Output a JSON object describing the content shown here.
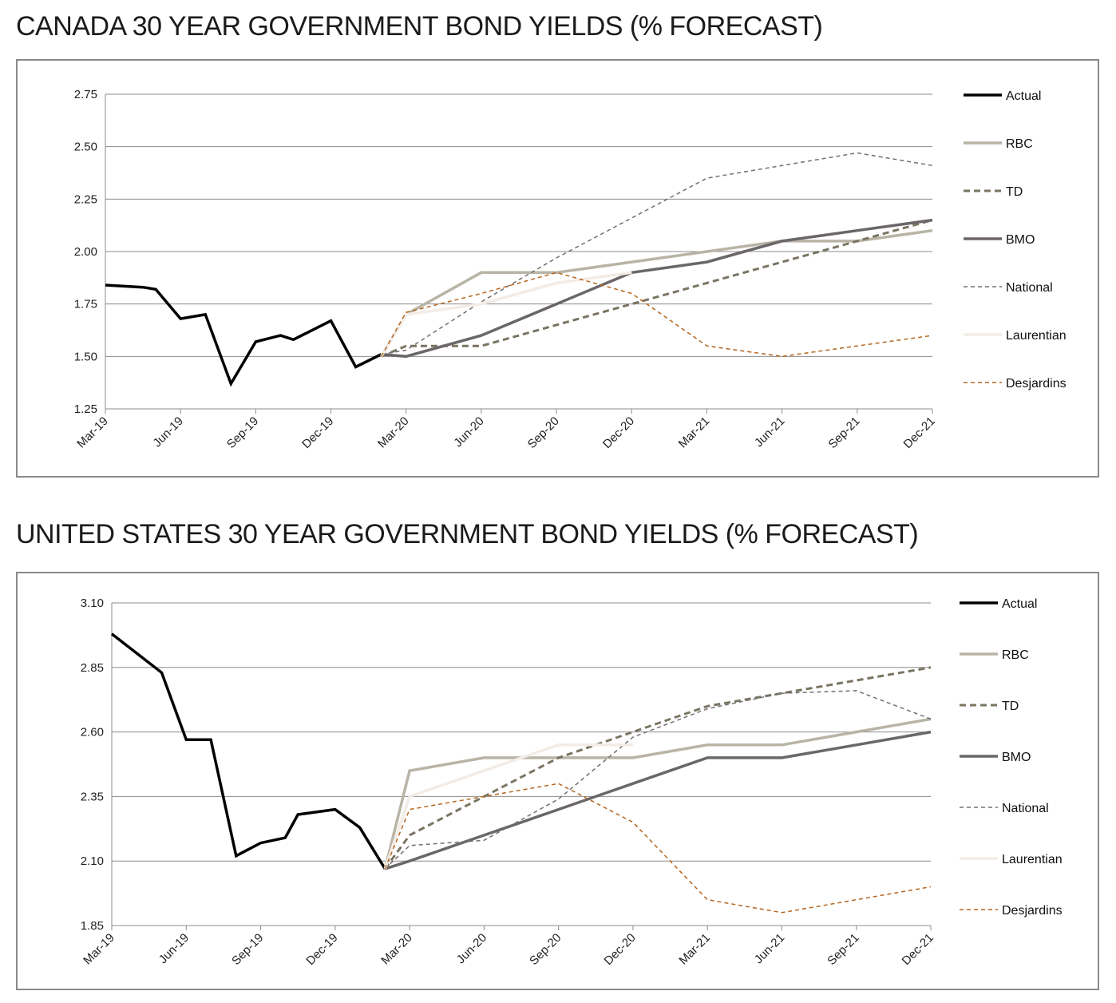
{
  "chart_data": [
    {
      "type": "line",
      "title": "CANADA 30 YEAR GOVERNMENT BOND YIELDS (% FORECAST)",
      "xlabel": "",
      "ylabel": "",
      "x_tick_labels": [
        "Mar-19",
        "Jun-19",
        "Sep-19",
        "Dec-19",
        "Mar-20",
        "Jun-20",
        "Sep-20",
        "Dec-20",
        "Mar-21",
        "Jun-21",
        "Sep-21",
        "Dec-21"
      ],
      "y_tick_labels": [
        "2.75",
        "2.50",
        "2.25",
        "2.00",
        "1.75",
        "1.50",
        "1.25"
      ],
      "ylim": [
        1.25,
        2.75
      ],
      "grid": "horizontal",
      "legend_position": "right",
      "series": [
        {
          "name": "Actual",
          "color": "#000000",
          "style": "solid-thick",
          "points": [
            [
              0,
              1.84
            ],
            [
              0.5,
              1.83
            ],
            [
              0.67,
              1.82
            ],
            [
              1,
              1.68
            ],
            [
              1.33,
              1.7
            ],
            [
              1.67,
              1.37
            ],
            [
              2,
              1.57
            ],
            [
              2.33,
              1.6
            ],
            [
              2.5,
              1.58
            ],
            [
              3,
              1.67
            ],
            [
              3.33,
              1.45
            ],
            [
              3.67,
              1.51
            ]
          ]
        },
        {
          "name": "RBC",
          "color": "#b8b4a6",
          "style": "solid-thick",
          "points": [
            [
              3.67,
              1.5
            ],
            [
              4,
              1.7
            ],
            [
              5,
              1.9
            ],
            [
              6,
              1.9
            ],
            [
              7,
              1.95
            ],
            [
              8,
              2.0
            ],
            [
              9,
              2.05
            ],
            [
              10,
              2.05
            ],
            [
              11,
              2.1
            ]
          ]
        },
        {
          "name": "TD",
          "color": "#7a7462",
          "style": "dashed-thick",
          "points": [
            [
              3.67,
              1.5
            ],
            [
              4,
              1.55
            ],
            [
              5,
              1.55
            ],
            [
              6,
              1.65
            ],
            [
              7,
              1.75
            ],
            [
              8,
              1.85
            ],
            [
              9,
              1.95
            ],
            [
              10,
              2.05
            ],
            [
              11,
              2.15
            ]
          ]
        },
        {
          "name": "BMO",
          "color": "#6b6669",
          "style": "solid-thick",
          "points": [
            [
              3.67,
              1.51
            ],
            [
              4,
              1.5
            ],
            [
              5,
              1.6
            ],
            [
              6,
              1.75
            ],
            [
              7,
              1.9
            ],
            [
              8,
              1.95
            ],
            [
              9,
              2.05
            ],
            [
              10,
              2.1
            ],
            [
              11,
              2.15
            ]
          ]
        },
        {
          "name": "National",
          "color": "#707070",
          "style": "dashed-thin",
          "points": [
            [
              3.67,
              1.51
            ],
            [
              4,
              1.53
            ],
            [
              5,
              1.76
            ],
            [
              6,
              1.97
            ],
            [
              7,
              2.16
            ],
            [
              8,
              2.35
            ],
            [
              9,
              2.41
            ],
            [
              10,
              2.47
            ],
            [
              11,
              2.41
            ]
          ]
        },
        {
          "name": "Laurentian",
          "color": "#f3ece6",
          "style": "solid-thick",
          "points": [
            [
              3.67,
              1.5
            ],
            [
              4,
              1.7
            ],
            [
              5,
              1.75
            ],
            [
              6,
              1.85
            ],
            [
              7,
              1.9
            ]
          ]
        },
        {
          "name": "Desjardins",
          "color": "#b5651d",
          "style": "dashed-thin",
          "points": [
            [
              3.67,
              1.5
            ],
            [
              4,
              1.71
            ],
            [
              5,
              1.8
            ],
            [
              6,
              1.9
            ],
            [
              7,
              1.8
            ],
            [
              8,
              1.55
            ],
            [
              9,
              1.5
            ],
            [
              10,
              1.55
            ],
            [
              11,
              1.6
            ]
          ]
        }
      ]
    },
    {
      "type": "line",
      "title": "UNITED STATES 30 YEAR GOVERNMENT BOND YIELDS (% FORECAST)",
      "xlabel": "",
      "ylabel": "",
      "x_tick_labels": [
        "Mar-19",
        "Jun-19",
        "Sep-19",
        "Dec-19",
        "Mar-20",
        "Jun-20",
        "Sep-20",
        "Dec-20",
        "Mar-21",
        "Jun-21",
        "Sep-21",
        "Dec-21"
      ],
      "y_tick_labels": [
        "3.10",
        "2.85",
        "2.60",
        "2.35",
        "2.10",
        "1.85"
      ],
      "ylim": [
        1.85,
        3.1
      ],
      "grid": "horizontal",
      "legend_position": "right",
      "series": [
        {
          "name": "Actual",
          "color": "#000000",
          "style": "solid-thick",
          "points": [
            [
              0,
              2.98
            ],
            [
              0.67,
              2.83
            ],
            [
              1,
              2.57
            ],
            [
              1.33,
              2.57
            ],
            [
              1.67,
              2.12
            ],
            [
              2,
              2.17
            ],
            [
              2.33,
              2.19
            ],
            [
              2.5,
              2.28
            ],
            [
              3,
              2.3
            ],
            [
              3.33,
              2.23
            ],
            [
              3.67,
              2.07
            ]
          ]
        },
        {
          "name": "RBC",
          "color": "#b8b4a6",
          "style": "solid-thick",
          "points": [
            [
              3.67,
              2.07
            ],
            [
              4,
              2.45
            ],
            [
              5,
              2.5
            ],
            [
              6,
              2.5
            ],
            [
              7,
              2.5
            ],
            [
              8,
              2.55
            ],
            [
              9,
              2.55
            ],
            [
              10,
              2.6
            ],
            [
              11,
              2.65
            ]
          ]
        },
        {
          "name": "TD",
          "color": "#7a7462",
          "style": "dashed-thick",
          "points": [
            [
              3.67,
              2.07
            ],
            [
              4,
              2.2
            ],
            [
              5,
              2.35
            ],
            [
              6,
              2.5
            ],
            [
              7,
              2.6
            ],
            [
              8,
              2.7
            ],
            [
              9,
              2.75
            ],
            [
              10,
              2.8
            ],
            [
              11,
              2.85
            ]
          ]
        },
        {
          "name": "BMO",
          "color": "#6b6669",
          "style": "solid-thick",
          "points": [
            [
              3.67,
              2.07
            ],
            [
              4,
              2.1
            ],
            [
              5,
              2.2
            ],
            [
              6,
              2.3
            ],
            [
              7,
              2.4
            ],
            [
              8,
              2.5
            ],
            [
              9,
              2.5
            ],
            [
              10,
              2.55
            ],
            [
              11,
              2.6
            ]
          ]
        },
        {
          "name": "National",
          "color": "#707070",
          "style": "dashed-thin",
          "points": [
            [
              3.67,
              2.07
            ],
            [
              4,
              2.16
            ],
            [
              5,
              2.18
            ],
            [
              6,
              2.34
            ],
            [
              7,
              2.58
            ],
            [
              8,
              2.69
            ],
            [
              9,
              2.75
            ],
            [
              10,
              2.76
            ],
            [
              11,
              2.65
            ]
          ]
        },
        {
          "name": "Laurentian",
          "color": "#f3ece6",
          "style": "solid-thick",
          "points": [
            [
              3.67,
              2.07
            ],
            [
              4,
              2.35
            ],
            [
              5,
              2.45
            ],
            [
              6,
              2.55
            ],
            [
              7,
              2.55
            ]
          ]
        },
        {
          "name": "Desjardins",
          "color": "#b5651d",
          "style": "dashed-thin",
          "points": [
            [
              3.67,
              2.07
            ],
            [
              4,
              2.3
            ],
            [
              5,
              2.35
            ],
            [
              6,
              2.4
            ],
            [
              7,
              2.25
            ],
            [
              8,
              1.95
            ],
            [
              9,
              1.9
            ],
            [
              10,
              1.95
            ],
            [
              11,
              2.0
            ]
          ]
        }
      ]
    }
  ]
}
